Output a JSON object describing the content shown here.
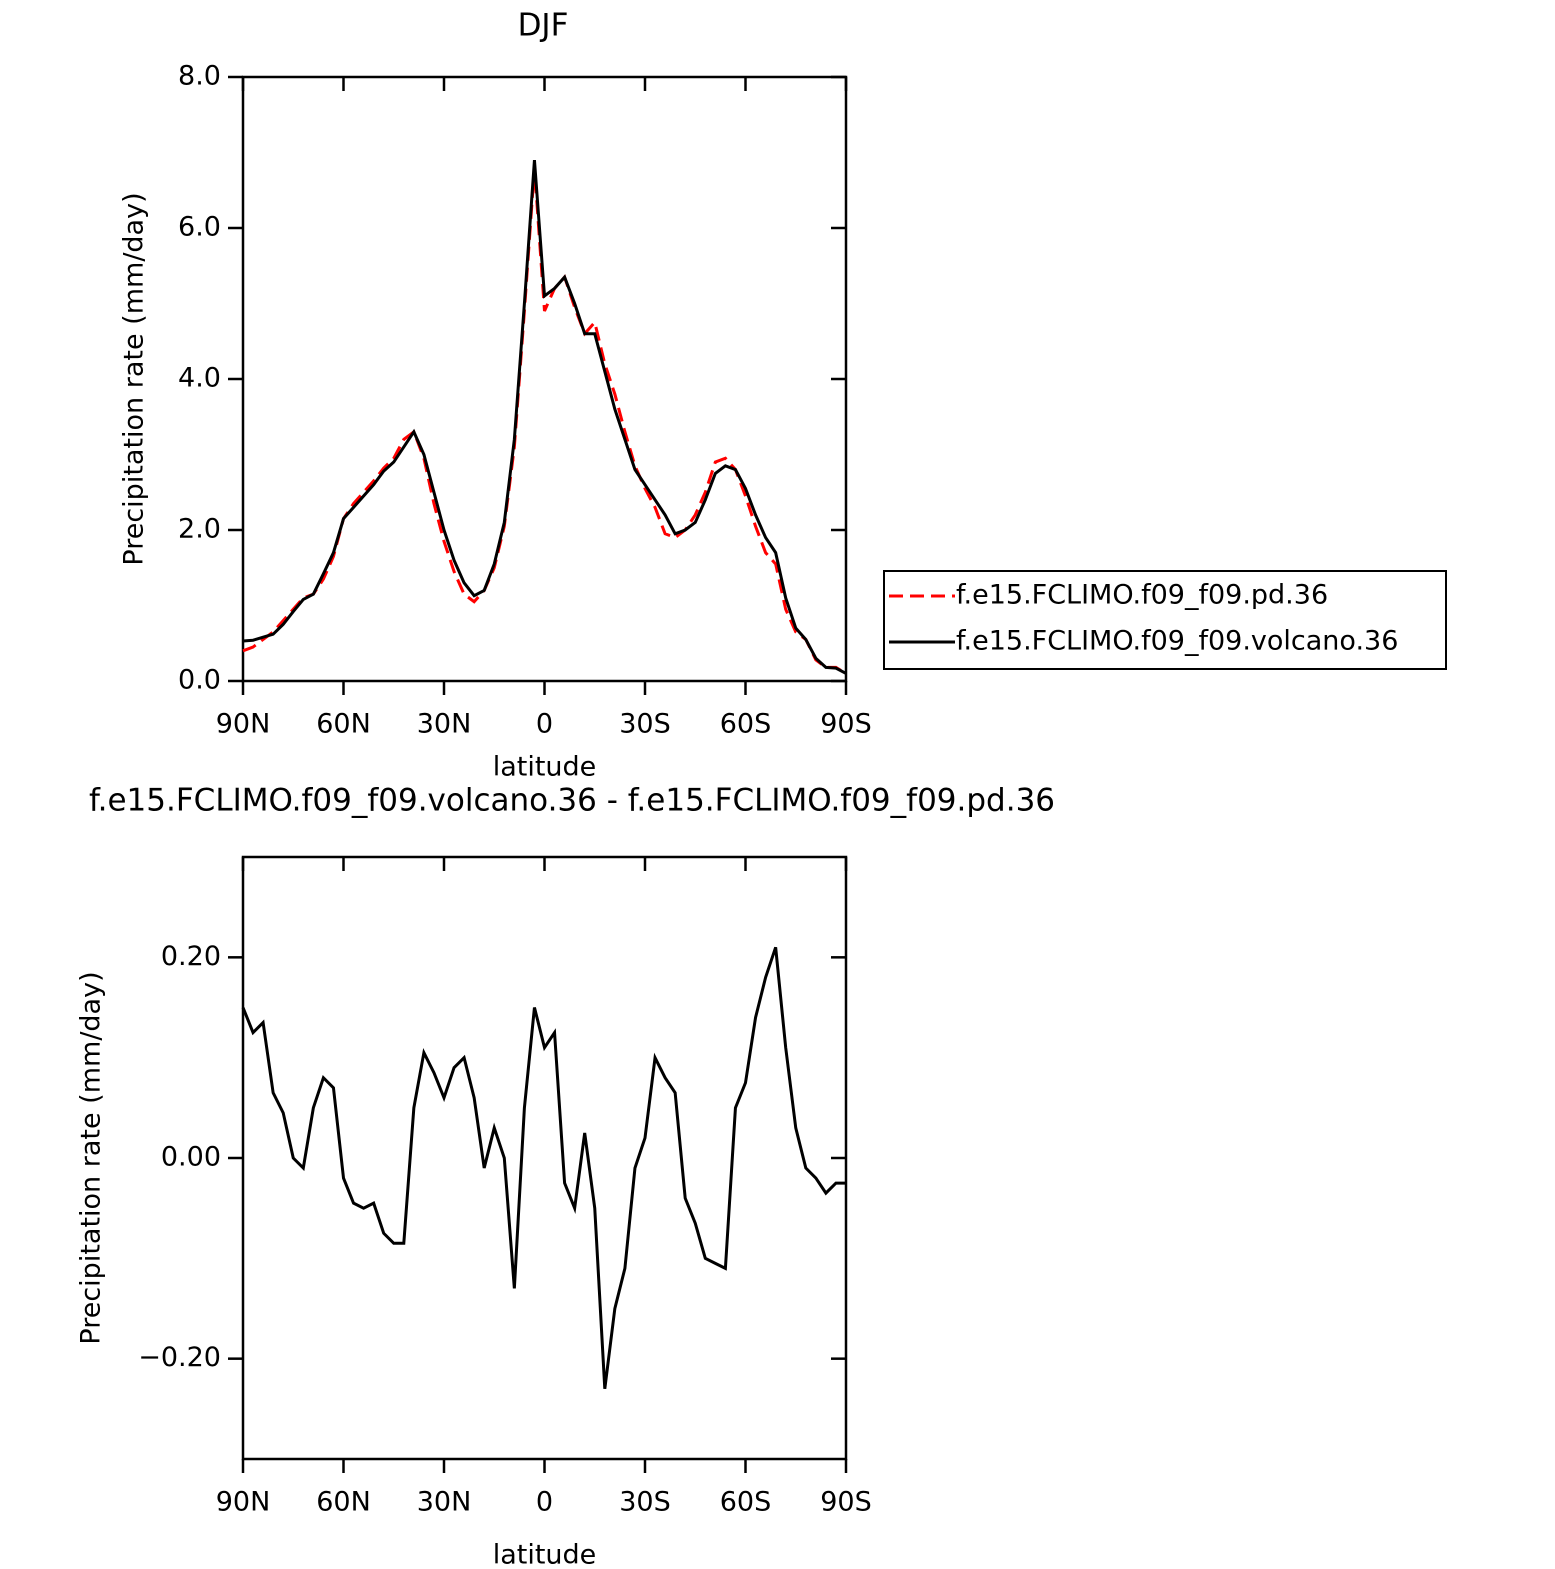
{
  "chart_data": [
    {
      "type": "line",
      "title": "DJF",
      "x_label": "latitude",
      "y_label": "Precipitation rate (mm/day)",
      "x": [
        90,
        87,
        84,
        81,
        78,
        75,
        72,
        69,
        66,
        63,
        60,
        57,
        54,
        51,
        48,
        45,
        42,
        39,
        36,
        33,
        30,
        27,
        24,
        21,
        18,
        15,
        12,
        9,
        6,
        3,
        0,
        -3,
        -6,
        -9,
        -12,
        -15,
        -18,
        -21,
        -24,
        -27,
        -30,
        -33,
        -36,
        -39,
        -42,
        -45,
        -48,
        -51,
        -54,
        -57,
        -60,
        -63,
        -66,
        -69,
        -72,
        -75,
        -78,
        -81,
        -84,
        -87,
        -90
      ],
      "xlim": [
        90,
        -90
      ],
      "xticks": [
        {
          "value": 90,
          "label": "90N"
        },
        {
          "value": 60,
          "label": "60N"
        },
        {
          "value": 30,
          "label": "30N"
        },
        0,
        {
          "value": -30,
          "label": "30S"
        },
        {
          "value": -60,
          "label": "60S"
        },
        {
          "value": -90,
          "label": "90S"
        }
      ],
      "ylim": [
        0,
        8
      ],
      "yticks": [
        {
          "value": 0,
          "label": "0.0"
        },
        {
          "value": 2,
          "label": "2.0"
        },
        {
          "value": 4,
          "label": "4.0"
        },
        {
          "value": 6,
          "label": "6.0"
        },
        {
          "value": 8,
          "label": "8.0"
        }
      ],
      "legend": "right",
      "series": [
        {
          "name": "f.e15.FCLIMO.f09_f09.pd.36",
          "color": "#ff0000",
          "linestyle": "dashed",
          "values": [
            0.4,
            0.45,
            0.55,
            0.65,
            0.8,
            0.95,
            1.1,
            1.15,
            1.35,
            1.65,
            2.15,
            2.35,
            2.5,
            2.65,
            2.82,
            2.95,
            3.2,
            3.3,
            2.95,
            2.35,
            1.85,
            1.45,
            1.15,
            1.05,
            1.2,
            1.5,
            2.05,
            3.1,
            4.9,
            6.8,
            4.9,
            5.2,
            5.35,
            4.95,
            4.6,
            4.75,
            4.2,
            3.8,
            3.3,
            2.85,
            2.55,
            2.3,
            1.95,
            1.9,
            2.0,
            2.2,
            2.5,
            2.9,
            2.95,
            2.8,
            2.45,
            2.05,
            1.7,
            1.55,
            0.95,
            0.65,
            0.55,
            0.28,
            0.18,
            0.18,
            0.1
          ]
        },
        {
          "name": "f.e15.FCLIMO.f09_f09.volcano.36",
          "color": "#000000",
          "linestyle": "solid",
          "values": [
            0.53,
            0.54,
            0.58,
            0.62,
            0.75,
            0.92,
            1.08,
            1.15,
            1.42,
            1.7,
            2.15,
            2.3,
            2.45,
            2.6,
            2.78,
            2.9,
            3.1,
            3.3,
            3.0,
            2.5,
            2.0,
            1.6,
            1.3,
            1.13,
            1.2,
            1.55,
            2.1,
            3.2,
            5.0,
            6.9,
            5.1,
            5.2,
            5.35,
            5.0,
            4.6,
            4.6,
            4.1,
            3.6,
            3.2,
            2.8,
            2.6,
            2.4,
            2.2,
            1.95,
            2.0,
            2.1,
            2.4,
            2.75,
            2.85,
            2.8,
            2.55,
            2.2,
            1.9,
            1.7,
            1.1,
            0.7,
            0.55,
            0.3,
            0.18,
            0.17,
            0.1
          ]
        }
      ]
    },
    {
      "type": "line",
      "title": "f.e15.FCLIMO.f09_f09.volcano.36 - f.e15.FCLIMO.f09_f09.pd.36",
      "x_label": "latitude",
      "y_label": "Precipitation rate (mm/day)",
      "x": [
        90,
        87,
        84,
        81,
        78,
        75,
        72,
        69,
        66,
        63,
        60,
        57,
        54,
        51,
        48,
        45,
        42,
        39,
        36,
        33,
        30,
        27,
        24,
        21,
        18,
        15,
        12,
        9,
        6,
        3,
        0,
        -3,
        -6,
        -9,
        -12,
        -15,
        -18,
        -21,
        -24,
        -27,
        -30,
        -33,
        -36,
        -39,
        -42,
        -45,
        -48,
        -51,
        -54,
        -57,
        -60,
        -63,
        -66,
        -69,
        -72,
        -75,
        -78,
        -81,
        -84,
        -87,
        -90
      ],
      "xlim": [
        90,
        -90
      ],
      "xticks": [
        {
          "value": 90,
          "label": "90N"
        },
        {
          "value": 60,
          "label": "60N"
        },
        {
          "value": 30,
          "label": "30N"
        },
        0,
        {
          "value": -30,
          "label": "30S"
        },
        {
          "value": -60,
          "label": "60S"
        },
        {
          "value": -90,
          "label": "90S"
        }
      ],
      "ylim": [
        -0.3,
        0.3
      ],
      "yticks": [
        {
          "value": -0.2,
          "label": "−0.20"
        },
        {
          "value": 0,
          "label": "0.00"
        },
        {
          "value": 0.2,
          "label": "0.20"
        }
      ],
      "series": [
        {
          "color": "#000000",
          "linestyle": "solid",
          "values": [
            0.15,
            0.125,
            0.135,
            0.065,
            0.045,
            0.0,
            -0.01,
            0.05,
            0.08,
            0.07,
            -0.02,
            -0.045,
            -0.05,
            -0.045,
            -0.075,
            -0.085,
            -0.085,
            0.05,
            0.105,
            0.085,
            0.06,
            0.09,
            0.1,
            0.06,
            -0.01,
            0.03,
            0.0,
            -0.13,
            0.05,
            0.15,
            0.11,
            0.125,
            -0.025,
            -0.05,
            0.025,
            -0.05,
            -0.23,
            -0.15,
            -0.11,
            -0.01,
            0.02,
            0.1,
            0.08,
            0.065,
            -0.04,
            -0.065,
            -0.1,
            -0.105,
            -0.11,
            0.05,
            0.075,
            0.14,
            0.18,
            0.21,
            0.11,
            0.03,
            -0.01,
            -0.02,
            -0.035,
            -0.025,
            -0.025
          ]
        }
      ]
    }
  ]
}
